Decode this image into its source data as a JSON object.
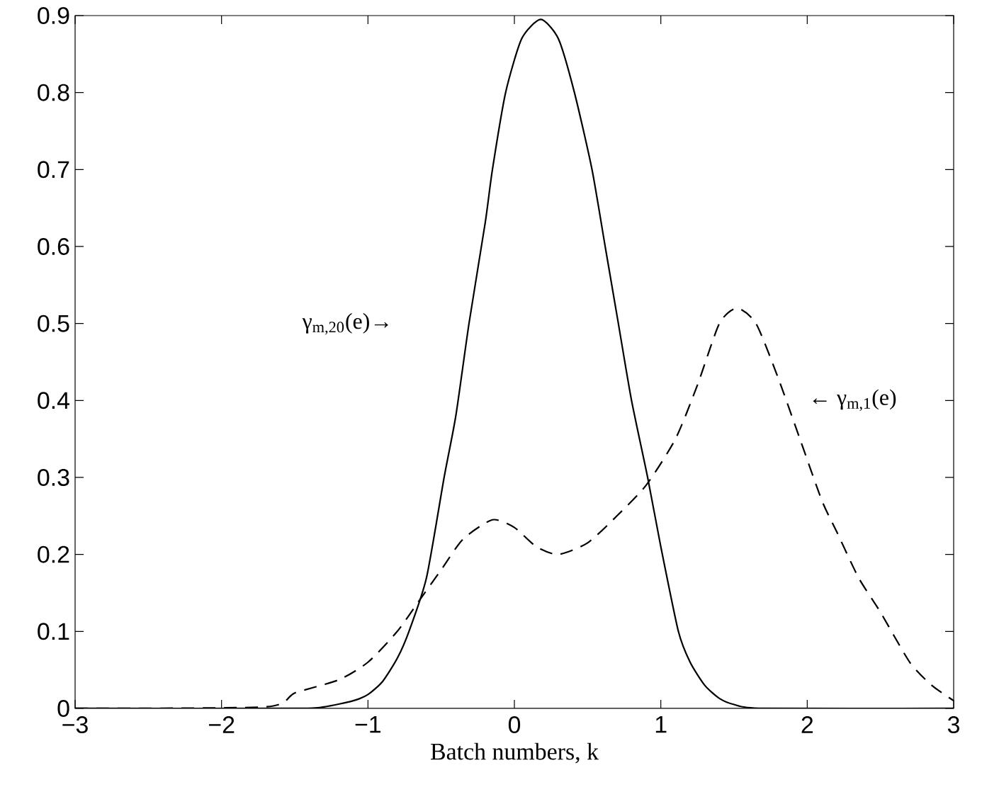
{
  "chart_data": {
    "type": "line",
    "xlabel": "Batch numbers, k",
    "xlim": [
      -3,
      3
    ],
    "xticks": [
      {
        "value": -3,
        "label": "−3"
      },
      {
        "value": -2,
        "label": "−2"
      },
      {
        "value": -1,
        "label": "−1"
      },
      0,
      1,
      2,
      3
    ],
    "ylim": [
      0,
      0.9
    ],
    "yticks": [
      0,
      0.1,
      0.2,
      0.3,
      0.4,
      0.5,
      0.6,
      0.7,
      0.8,
      0.9
    ],
    "grid": false,
    "marker": "none",
    "series": [
      {
        "color": "#000000",
        "line_style": "solid",
        "x": [
          -3,
          -1.5,
          -1.3,
          -1.1,
          -1.0,
          -0.9,
          -0.8,
          -0.72,
          -0.6,
          -0.48,
          -0.4,
          -0.31,
          -0.2,
          -0.15,
          -0.06,
          0.05,
          0.18,
          0.3,
          0.41,
          0.53,
          0.62,
          0.71,
          0.8,
          0.91,
          1.0,
          1.12,
          1.2,
          1.3,
          1.4,
          1.5,
          1.7,
          3
        ],
        "values": [
          0,
          0,
          0.002,
          0.01,
          0.018,
          0.035,
          0.065,
          0.1,
          0.17,
          0.3,
          0.38,
          0.5,
          0.63,
          0.7,
          0.8,
          0.87,
          0.895,
          0.87,
          0.8,
          0.7,
          0.6,
          0.5,
          0.4,
          0.3,
          0.21,
          0.1,
          0.06,
          0.03,
          0.013,
          0.005,
          0,
          0
        ]
      },
      {
        "color": "#000000",
        "line_style": "dashed",
        "x": [
          -3,
          -1.7,
          -1.5,
          -1.2,
          -1.0,
          -0.8,
          -0.65,
          -0.5,
          -0.35,
          -0.15,
          0.0,
          0.15,
          0.3,
          0.5,
          0.7,
          0.9,
          1.1,
          1.25,
          1.4,
          1.52,
          1.65,
          1.8,
          1.95,
          2.1,
          2.2,
          2.35,
          2.5,
          2.7,
          2.85,
          3.0
        ],
        "values": [
          0,
          0.002,
          0.02,
          0.037,
          0.06,
          0.1,
          0.14,
          0.18,
          0.22,
          0.245,
          0.235,
          0.21,
          0.2,
          0.215,
          0.25,
          0.29,
          0.35,
          0.42,
          0.5,
          0.52,
          0.5,
          0.43,
          0.35,
          0.27,
          0.23,
          0.17,
          0.125,
          0.06,
          0.03,
          0.01
        ]
      }
    ],
    "annotations": [
      "γ$_{m,20}$(e)→",
      "← γ$_{m,1}$(e)"
    ]
  }
}
